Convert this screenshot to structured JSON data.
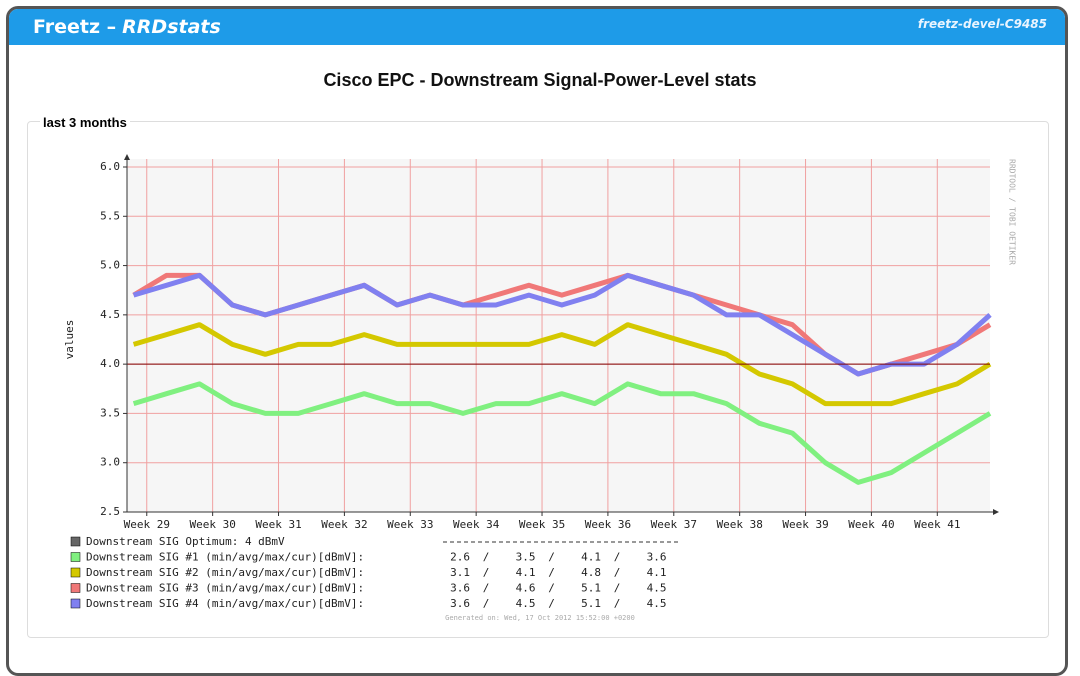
{
  "header": {
    "title": "Freetz –",
    "title_em": "RRDstats",
    "host": "freetz-devel-C9485"
  },
  "panel": {
    "legend": "last 3 months"
  },
  "chart_data": {
    "type": "line",
    "title": "Cisco EPC - Downstream Signal-Power-Level stats",
    "ylabel": "values",
    "watermark": "RRDTOOL / TOBI OETIKER",
    "footer": "Generated on: Wed, 17 Oct 2012 15:52:00 +0200",
    "xlim": [
      28.7,
      41.8
    ],
    "ylim": [
      2.5,
      6.0
    ],
    "yticks": [
      {
        "value": 2.5,
        "label": "2.5"
      },
      {
        "value": 3,
        "label": "3.0"
      },
      {
        "value": 3.5,
        "label": "3.5"
      },
      {
        "value": 4,
        "label": "4.0"
      },
      {
        "value": 4.5,
        "label": "4.5"
      },
      {
        "value": 5,
        "label": "5.0"
      },
      {
        "value": 5.5,
        "label": "5.5"
      },
      {
        "value": 6,
        "label": "6.0"
      }
    ],
    "xticks": [
      {
        "value": 29,
        "label": "Week 29"
      },
      {
        "value": 30,
        "label": "Week 30"
      },
      {
        "value": 31,
        "label": "Week 31"
      },
      {
        "value": 32,
        "label": "Week 32"
      },
      {
        "value": 33,
        "label": "Week 33"
      },
      {
        "value": 34,
        "label": "Week 34"
      },
      {
        "value": 35,
        "label": "Week 35"
      },
      {
        "value": 36,
        "label": "Week 36"
      },
      {
        "value": 37,
        "label": "Week 37"
      },
      {
        "value": 38,
        "label": "Week 38"
      },
      {
        "value": 39,
        "label": "Week 39"
      },
      {
        "value": 40,
        "label": "Week 40"
      },
      {
        "value": 41,
        "label": "Week 41"
      }
    ],
    "grid": true,
    "optimum": {
      "label": "Downstream SIG Optimum: 4 dBmV",
      "value": 4,
      "color": "#800000",
      "swatch": "#666666"
    },
    "stats_separator": "/",
    "x": [
      28.8,
      29.3,
      29.8,
      30.3,
      30.8,
      31.3,
      31.8,
      32.3,
      32.8,
      33.3,
      33.8,
      34.3,
      34.8,
      35.3,
      35.8,
      36.3,
      36.8,
      37.3,
      37.8,
      38.3,
      38.8,
      39.3,
      39.8,
      40.3,
      40.8,
      41.3,
      41.8
    ],
    "series": [
      {
        "name": "Downstream SIG #1 (min/avg/max/cur)[dBmV]:",
        "color": "#80f080",
        "stats": [
          2.6,
          3.5,
          4.1,
          3.6
        ],
        "values": [
          3.6,
          3.7,
          3.8,
          3.6,
          3.5,
          3.5,
          3.6,
          3.7,
          3.6,
          3.6,
          3.5,
          3.6,
          3.6,
          3.7,
          3.6,
          3.8,
          3.7,
          3.7,
          3.6,
          3.4,
          3.3,
          3.0,
          2.8,
          2.9,
          3.1,
          3.3,
          3.5
        ]
      },
      {
        "name": "Downstream SIG #2 (min/avg/max/cur)[dBmV]:",
        "color": "#d4c800",
        "stats": [
          3.1,
          4.1,
          4.8,
          4.1
        ],
        "values": [
          4.2,
          4.3,
          4.4,
          4.2,
          4.1,
          4.2,
          4.2,
          4.3,
          4.2,
          4.2,
          4.2,
          4.2,
          4.2,
          4.3,
          4.2,
          4.4,
          4.3,
          4.2,
          4.1,
          3.9,
          3.8,
          3.6,
          3.6,
          3.6,
          3.7,
          3.8,
          4.0
        ]
      },
      {
        "name": "Downstream SIG #3 (min/avg/max/cur)[dBmV]:",
        "color": "#f07878",
        "stats": [
          3.6,
          4.6,
          5.1,
          4.5
        ],
        "values": [
          4.7,
          4.9,
          4.9,
          4.6,
          4.5,
          4.6,
          4.7,
          4.8,
          4.6,
          4.7,
          4.6,
          4.7,
          4.8,
          4.7,
          4.8,
          4.9,
          4.8,
          4.7,
          4.6,
          4.5,
          4.4,
          4.1,
          3.9,
          4.0,
          4.1,
          4.2,
          4.4
        ]
      },
      {
        "name": "Downstream SIG #4 (min/avg/max/cur)[dBmV]:",
        "color": "#8080f0",
        "stats": [
          3.6,
          4.5,
          5.1,
          4.5
        ],
        "values": [
          4.7,
          4.8,
          4.9,
          4.6,
          4.5,
          4.6,
          4.7,
          4.8,
          4.6,
          4.7,
          4.6,
          4.6,
          4.7,
          4.6,
          4.7,
          4.9,
          4.8,
          4.7,
          4.5,
          4.5,
          4.3,
          4.1,
          3.9,
          4.0,
          4.0,
          4.2,
          4.5
        ]
      }
    ]
  }
}
